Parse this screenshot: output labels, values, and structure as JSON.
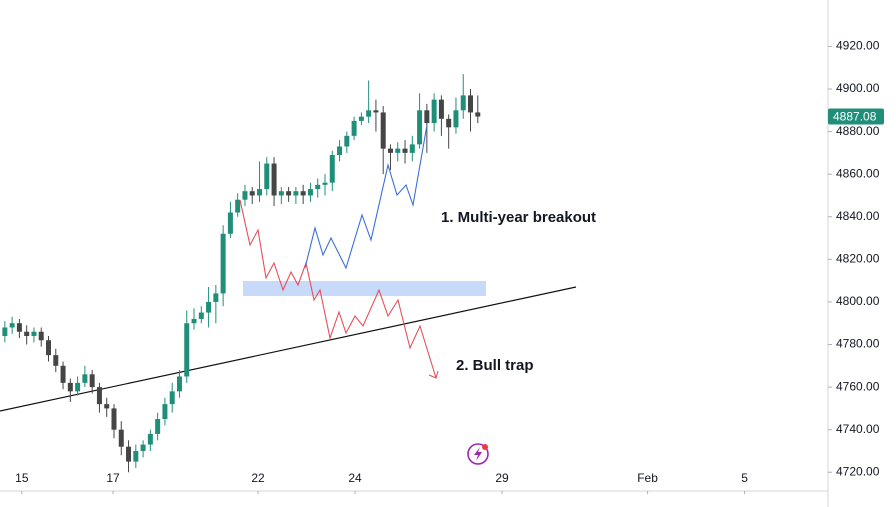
{
  "chart_data": {
    "type": "candlestick",
    "up_color": "#1f8f7a",
    "down_color": "#454545",
    "x": [
      -0.35,
      -0.2,
      -0.05,
      0.1,
      0.25,
      0.4,
      0.55,
      0.7,
      0.85,
      1.0,
      1.15,
      1.3,
      1.45,
      1.6,
      1.75,
      1.9,
      2.05,
      2.2,
      2.35,
      2.5,
      2.65,
      2.8,
      2.95,
      3.1,
      3.25,
      3.4,
      3.55,
      3.7,
      3.85,
      4.0,
      4.15,
      4.3,
      4.45,
      4.6,
      4.75,
      4.9,
      5.05,
      5.2,
      5.35,
      5.5,
      5.65,
      5.8,
      5.95,
      6.1,
      6.25,
      6.4,
      6.55,
      6.7,
      6.85,
      7.0,
      7.15,
      7.3,
      7.45,
      7.6,
      7.75,
      7.9,
      8.05,
      8.2,
      8.35,
      8.5,
      8.65,
      8.8,
      8.95,
      9.1,
      9.25,
      9.4
    ],
    "open": [
      4784,
      4788,
      4790,
      4786,
      4784,
      4786,
      4782,
      4775,
      4770,
      4762,
      4758,
      4762,
      4766,
      4760,
      4752,
      4750,
      4740,
      4732,
      4725,
      4730,
      4733,
      4738,
      4745,
      4752,
      4758,
      4765,
      4790,
      4792,
      4795,
      4800,
      4804,
      4832,
      4842,
      4848,
      4852,
      4850,
      4853,
      4865,
      4850,
      4852,
      4850,
      4852,
      4850,
      4853,
      4855,
      4856,
      4869,
      4873,
      4878,
      4885,
      4887,
      4890,
      4889,
      4872,
      4870,
      4872,
      4870,
      4874,
      4890,
      4884,
      4895,
      4886,
      4882,
      4890,
      4897,
      4889
    ],
    "high": [
      4791,
      4793,
      4792,
      4789,
      4788,
      4788,
      4784,
      4778,
      4772,
      4764,
      4765,
      4770,
      4768,
      4762,
      4755,
      4752,
      4744,
      4735,
      4733,
      4735,
      4740,
      4748,
      4755,
      4762,
      4768,
      4796,
      4797,
      4798,
      4807,
      4808,
      4836,
      4847,
      4851,
      4855,
      4854,
      4866,
      4868,
      4868,
      4854,
      4854,
      4854,
      4855,
      4856,
      4858,
      4860,
      4871,
      4876,
      4880,
      4887,
      4889,
      4904,
      4895,
      4892,
      4874,
      4875,
      4876,
      4878,
      4898,
      4893,
      4898,
      4897,
      4888,
      4896,
      4907,
      4900,
      4897
    ],
    "low": [
      4781,
      4785,
      4783,
      4780,
      4781,
      4779,
      4772,
      4767,
      4759,
      4753,
      4756,
      4760,
      4757,
      4748,
      4746,
      4736,
      4728,
      4720,
      4722,
      4727,
      4730,
      4735,
      4742,
      4748,
      4755,
      4762,
      4787,
      4790,
      4788,
      4790,
      4798,
      4830,
      4840,
      4845,
      4846,
      4847,
      4850,
      4845,
      4846,
      4847,
      4846,
      4846,
      4847,
      4849,
      4850,
      4852,
      4866,
      4870,
      4876,
      4883,
      4884,
      4880,
      4860,
      4862,
      4866,
      4865,
      4866,
      4872,
      4870,
      4880,
      4878,
      4872,
      4879,
      4886,
      4880,
      4884
    ],
    "close": [
      4788,
      4790,
      4786,
      4784,
      4786,
      4782,
      4775,
      4770,
      4762,
      4758,
      4762,
      4766,
      4760,
      4752,
      4750,
      4740,
      4732,
      4725,
      4730,
      4733,
      4738,
      4745,
      4752,
      4758,
      4765,
      4790,
      4792,
      4795,
      4800,
      4804,
      4832,
      4842,
      4848,
      4852,
      4850,
      4853,
      4865,
      4850,
      4852,
      4850,
      4852,
      4850,
      4853,
      4855,
      4856,
      4869,
      4873,
      4878,
      4885,
      4887,
      4890,
      4889,
      4872,
      4870,
      4872,
      4870,
      4874,
      4890,
      4884,
      4895,
      4886,
      4882,
      4890,
      4897,
      4889,
      4887.08
    ],
    "xlim": [
      -0.45,
      16.62
    ],
    "ylim": [
      4711.2,
      4941.8
    ],
    "xticks": [
      {
        "value": 0,
        "label": "15"
      },
      {
        "value": 1.88,
        "label": "17"
      },
      {
        "value": 4.87,
        "label": "22"
      },
      {
        "value": 6.87,
        "label": "24"
      },
      {
        "value": 9.9,
        "label": "29"
      },
      {
        "value": 12.9,
        "label": "Feb"
      },
      {
        "value": 14.9,
        "label": "5"
      }
    ],
    "yticks": [
      {
        "value": 4720,
        "label": "4720.00"
      },
      {
        "value": 4740,
        "label": "4740.00"
      },
      {
        "value": 4760,
        "label": "4760.00"
      },
      {
        "value": 4780,
        "label": "4780.00"
      },
      {
        "value": 4800,
        "label": "4800.00"
      },
      {
        "value": 4820,
        "label": "4820.00"
      },
      {
        "value": 4840,
        "label": "4840.00"
      },
      {
        "value": 4860,
        "label": "4860.00"
      },
      {
        "value": 4880,
        "label": "4880.00"
      },
      {
        "value": 4900,
        "label": "4900.00"
      },
      {
        "value": 4920,
        "label": "4920.00"
      }
    ],
    "annotations": [
      "1. Multi-year breakout",
      "2. Bull trap"
    ]
  }
}
